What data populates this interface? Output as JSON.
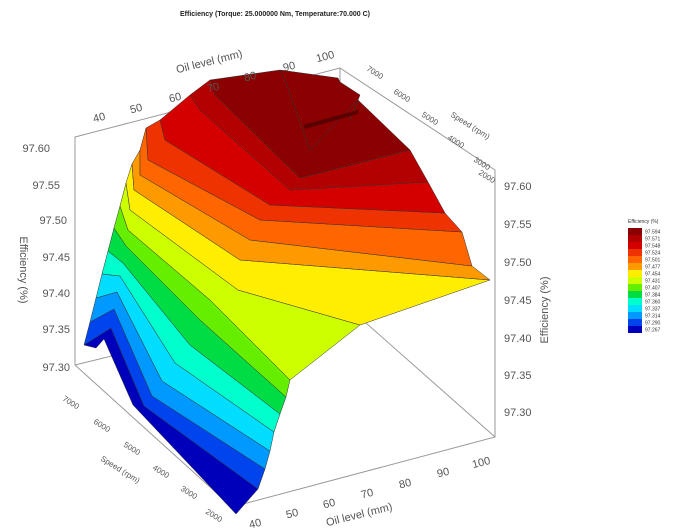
{
  "chart_data": {
    "type": "surface3d",
    "title": "Efficiency (Torque: 25.000000 Nm, Temperature:70.000 C)",
    "x_axis": {
      "label": "Oil level (mm)",
      "ticks": [
        "40",
        "50",
        "60",
        "70",
        "80",
        "90",
        "100"
      ],
      "range": [
        40,
        100
      ]
    },
    "y_axis": {
      "label": "Speed (rpm)",
      "ticks": [
        "2000",
        "3000",
        "4000",
        "5000",
        "6000",
        "7000"
      ],
      "range": [
        2000,
        7000
      ]
    },
    "z_axis": {
      "label": "Efficiency (%)",
      "ticks": [
        "97.30",
        "97.35",
        "97.40",
        "97.45",
        "97.50",
        "97.55",
        "97.60"
      ],
      "range": [
        97.28,
        97.61
      ]
    },
    "legend": {
      "title": "Efficiency (%)",
      "placement": "right",
      "levels": [
        "97.594",
        "97.571",
        "97.548",
        "97.524",
        "97.501",
        "97.477",
        "97.454",
        "97.431",
        "97.407",
        "97.384",
        "97.360",
        "97.337",
        "97.314",
        "97.290",
        "97.267"
      ],
      "colors": [
        "#8b0000",
        "#b30000",
        "#d40000",
        "#ee3300",
        "#ff6600",
        "#ff9900",
        "#ffee00",
        "#ccff00",
        "#66ee00",
        "#00dd44",
        "#00ffcc",
        "#00ddff",
        "#0099ff",
        "#0044ee",
        "#0000bb"
      ]
    },
    "grid": true
  }
}
